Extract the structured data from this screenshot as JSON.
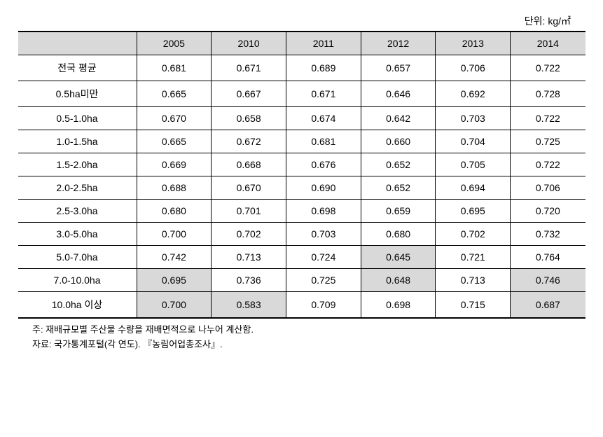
{
  "unit_label": "단위: kg/㎡",
  "table": {
    "header_blank": "",
    "years": [
      "2005",
      "2010",
      "2011",
      "2012",
      "2013",
      "2014"
    ],
    "rows": [
      {
        "label": "전국 평균",
        "values": [
          "0.681",
          "0.671",
          "0.689",
          "0.657",
          "0.706",
          "0.722"
        ],
        "highlighted": [
          false,
          false,
          false,
          false,
          false,
          false
        ]
      },
      {
        "label": "0.5ha미만",
        "values": [
          "0.665",
          "0.667",
          "0.671",
          "0.646",
          "0.692",
          "0.728"
        ],
        "highlighted": [
          false,
          false,
          false,
          false,
          false,
          false
        ]
      },
      {
        "label": "0.5-1.0ha",
        "values": [
          "0.670",
          "0.658",
          "0.674",
          "0.642",
          "0.703",
          "0.722"
        ],
        "highlighted": [
          false,
          false,
          false,
          false,
          false,
          false
        ]
      },
      {
        "label": "1.0-1.5ha",
        "values": [
          "0.665",
          "0.672",
          "0.681",
          "0.660",
          "0.704",
          "0.725"
        ],
        "highlighted": [
          false,
          false,
          false,
          false,
          false,
          false
        ]
      },
      {
        "label": "1.5-2.0ha",
        "values": [
          "0.669",
          "0.668",
          "0.676",
          "0.652",
          "0.705",
          "0.722"
        ],
        "highlighted": [
          false,
          false,
          false,
          false,
          false,
          false
        ]
      },
      {
        "label": "2.0-2.5ha",
        "values": [
          "0.688",
          "0.670",
          "0.690",
          "0.652",
          "0.694",
          "0.706"
        ],
        "highlighted": [
          false,
          false,
          false,
          false,
          false,
          false
        ]
      },
      {
        "label": "2.5-3.0ha",
        "values": [
          "0.680",
          "0.701",
          "0.698",
          "0.659",
          "0.695",
          "0.720"
        ],
        "highlighted": [
          false,
          false,
          false,
          false,
          false,
          false
        ]
      },
      {
        "label": "3.0-5.0ha",
        "values": [
          "0.700",
          "0.702",
          "0.703",
          "0.680",
          "0.702",
          "0.732"
        ],
        "highlighted": [
          false,
          false,
          false,
          false,
          false,
          false
        ]
      },
      {
        "label": "5.0-7.0ha",
        "values": [
          "0.742",
          "0.713",
          "0.724",
          "0.645",
          "0.721",
          "0.764"
        ],
        "highlighted": [
          false,
          false,
          false,
          true,
          false,
          false
        ]
      },
      {
        "label": "7.0-10.0ha",
        "values": [
          "0.695",
          "0.736",
          "0.725",
          "0.648",
          "0.713",
          "0.746"
        ],
        "highlighted": [
          true,
          false,
          false,
          true,
          false,
          true
        ]
      },
      {
        "label": "10.0ha 이상",
        "values": [
          "0.700",
          "0.583",
          "0.709",
          "0.698",
          "0.715",
          "0.687"
        ],
        "highlighted": [
          true,
          true,
          false,
          false,
          false,
          true
        ]
      }
    ]
  },
  "footnotes": {
    "note1": "주: 재배규모별 주산물 수량을 재배면적으로 나누어 계산함.",
    "note2": "자료: 국가통계포털(각 연도). 『농림어업총조사』."
  },
  "colors": {
    "highlight_bg": "#d9d9d9",
    "border": "#000000",
    "background": "#ffffff"
  }
}
